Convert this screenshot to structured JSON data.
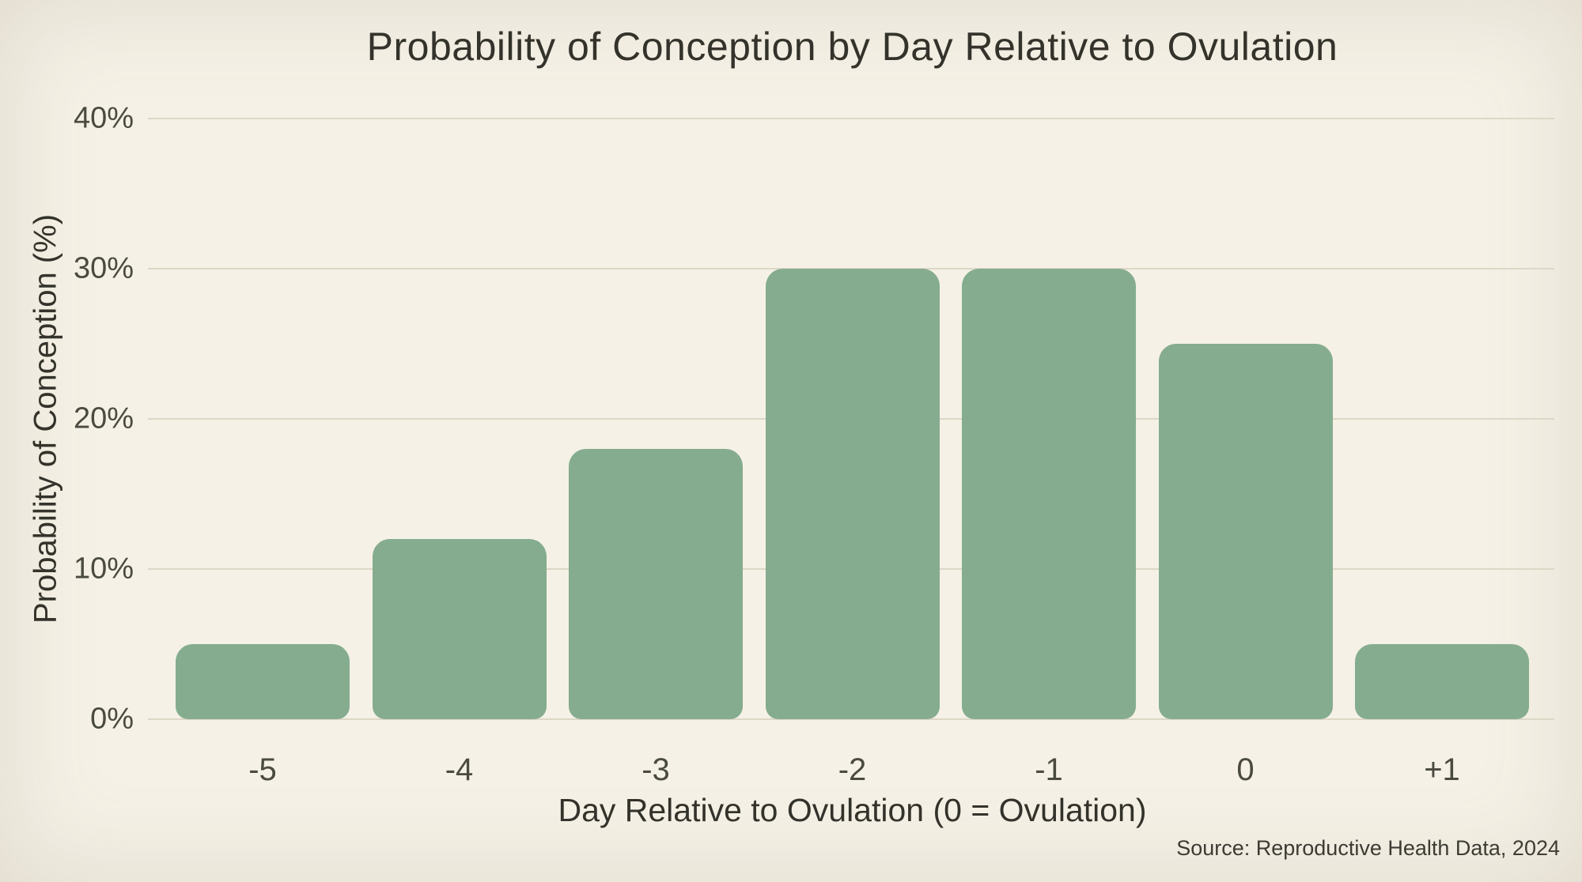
{
  "chart_data": {
    "type": "bar",
    "title": "Probability of Conception by Day Relative to Ovulation",
    "xlabel": "Day Relative to Ovulation (0 = Ovulation)",
    "ylabel": "Probability of Conception (%)",
    "categories": [
      "-5",
      "-4",
      "-3",
      "-2",
      "-1",
      "0",
      "+1"
    ],
    "values": [
      5,
      12,
      18,
      30,
      30,
      25,
      5
    ],
    "ylim": [
      0,
      40
    ],
    "y_ticks": [
      {
        "value": 0,
        "label": "0%"
      },
      {
        "value": 10,
        "label": "10%"
      },
      {
        "value": 20,
        "label": "20%"
      },
      {
        "value": 30,
        "label": "30%"
      },
      {
        "value": 40,
        "label": "40%"
      }
    ],
    "grid": true,
    "legend": false
  },
  "source": "Source: Reproductive Health Data, 2024",
  "colors": {
    "bg": "#f5f1e6",
    "bar": "#85ac8e",
    "grid": "#ddd7c6",
    "text": "#33322b",
    "tick": "#4a4a40",
    "source": "#3b3a32"
  }
}
